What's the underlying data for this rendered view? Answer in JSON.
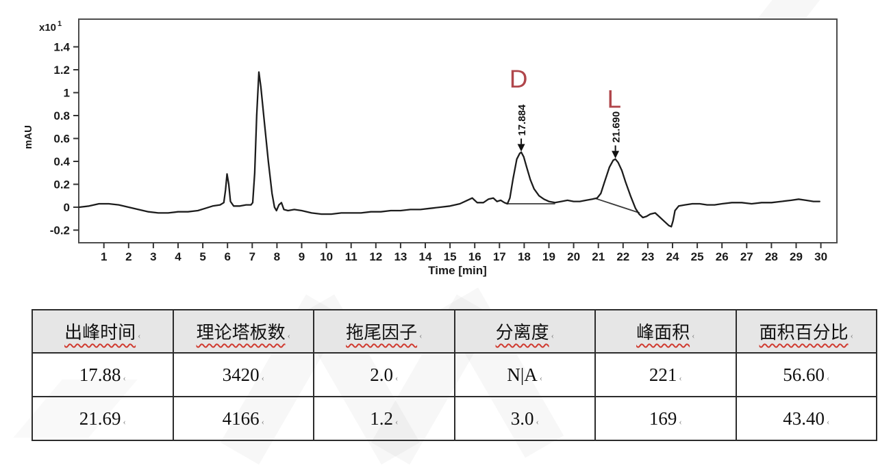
{
  "chart_data": {
    "type": "line",
    "title": "",
    "xlabel": "Time [min]",
    "ylabel": "mAU",
    "y_scale": {
      "base": "x10",
      "exponent": "1"
    },
    "xlim": [
      0,
      30.6
    ],
    "ylim": [
      -0.31,
      1.64
    ],
    "x_ticks": [
      1,
      2,
      3,
      4,
      5,
      6,
      7,
      8,
      9,
      10,
      11,
      12,
      13,
      14,
      15,
      16,
      17,
      18,
      19,
      20,
      21,
      22,
      23,
      24,
      25,
      26,
      27,
      28,
      29,
      30
    ],
    "y_ticks": [
      -0.2,
      0,
      0.2,
      0.4,
      0.6,
      0.8,
      1,
      1.2,
      1.4
    ],
    "grid": false,
    "trace_color": "#1c1c1c",
    "trace": [
      [
        0,
        0.0
      ],
      [
        0.4,
        0.01
      ],
      [
        0.8,
        0.03
      ],
      [
        1.2,
        0.03
      ],
      [
        1.6,
        0.02
      ],
      [
        2.0,
        0.0
      ],
      [
        2.4,
        -0.02
      ],
      [
        2.8,
        -0.04
      ],
      [
        3.2,
        -0.05
      ],
      [
        3.6,
        -0.05
      ],
      [
        4.0,
        -0.04
      ],
      [
        4.4,
        -0.04
      ],
      [
        4.8,
        -0.03
      ],
      [
        5.1,
        -0.01
      ],
      [
        5.4,
        0.01
      ],
      [
        5.7,
        0.02
      ],
      [
        5.85,
        0.04
      ],
      [
        5.92,
        0.15
      ],
      [
        5.98,
        0.29
      ],
      [
        6.05,
        0.2
      ],
      [
        6.12,
        0.05
      ],
      [
        6.25,
        0.01
      ],
      [
        6.5,
        0.01
      ],
      [
        6.75,
        0.02
      ],
      [
        6.95,
        0.02
      ],
      [
        7.02,
        0.04
      ],
      [
        7.1,
        0.3
      ],
      [
        7.18,
        0.8
      ],
      [
        7.27,
        1.18
      ],
      [
        7.35,
        1.05
      ],
      [
        7.5,
        0.72
      ],
      [
        7.65,
        0.4
      ],
      [
        7.8,
        0.12
      ],
      [
        7.9,
        0.0
      ],
      [
        7.98,
        -0.03
      ],
      [
        8.08,
        0.02
      ],
      [
        8.18,
        0.04
      ],
      [
        8.28,
        -0.02
      ],
      [
        8.45,
        -0.03
      ],
      [
        8.7,
        -0.02
      ],
      [
        9.0,
        -0.03
      ],
      [
        9.4,
        -0.05
      ],
      [
        9.8,
        -0.06
      ],
      [
        10.2,
        -0.06
      ],
      [
        10.6,
        -0.05
      ],
      [
        11.0,
        -0.05
      ],
      [
        11.4,
        -0.05
      ],
      [
        11.8,
        -0.04
      ],
      [
        12.2,
        -0.04
      ],
      [
        12.6,
        -0.03
      ],
      [
        13.0,
        -0.03
      ],
      [
        13.4,
        -0.02
      ],
      [
        13.8,
        -0.02
      ],
      [
        14.2,
        -0.01
      ],
      [
        14.6,
        0.0
      ],
      [
        15.0,
        0.01
      ],
      [
        15.4,
        0.03
      ],
      [
        15.7,
        0.06
      ],
      [
        15.9,
        0.08
      ],
      [
        16.1,
        0.04
      ],
      [
        16.35,
        0.04
      ],
      [
        16.55,
        0.07
      ],
      [
        16.75,
        0.08
      ],
      [
        16.9,
        0.05
      ],
      [
        17.05,
        0.06
      ],
      [
        17.2,
        0.04
      ],
      [
        17.32,
        0.03
      ],
      [
        17.42,
        0.08
      ],
      [
        17.55,
        0.25
      ],
      [
        17.7,
        0.42
      ],
      [
        17.82,
        0.47
      ],
      [
        17.88,
        0.48
      ],
      [
        17.98,
        0.44
      ],
      [
        18.1,
        0.35
      ],
      [
        18.25,
        0.24
      ],
      [
        18.4,
        0.16
      ],
      [
        18.6,
        0.1
      ],
      [
        18.8,
        0.07
      ],
      [
        19.0,
        0.05
      ],
      [
        19.25,
        0.04
      ],
      [
        19.5,
        0.05
      ],
      [
        19.75,
        0.06
      ],
      [
        20.0,
        0.05
      ],
      [
        20.25,
        0.05
      ],
      [
        20.5,
        0.06
      ],
      [
        20.75,
        0.07
      ],
      [
        20.95,
        0.08
      ],
      [
        21.1,
        0.12
      ],
      [
        21.25,
        0.22
      ],
      [
        21.45,
        0.35
      ],
      [
        21.6,
        0.41
      ],
      [
        21.69,
        0.42
      ],
      [
        21.8,
        0.39
      ],
      [
        21.95,
        0.32
      ],
      [
        22.1,
        0.22
      ],
      [
        22.3,
        0.1
      ],
      [
        22.5,
        -0.01
      ],
      [
        22.65,
        -0.06
      ],
      [
        22.8,
        -0.09
      ],
      [
        22.95,
        -0.08
      ],
      [
        23.1,
        -0.06
      ],
      [
        23.3,
        -0.05
      ],
      [
        23.5,
        -0.09
      ],
      [
        23.7,
        -0.13
      ],
      [
        23.85,
        -0.16
      ],
      [
        23.95,
        -0.17
      ],
      [
        24.02,
        -0.12
      ],
      [
        24.1,
        -0.03
      ],
      [
        24.25,
        0.01
      ],
      [
        24.5,
        0.02
      ],
      [
        24.8,
        0.03
      ],
      [
        25.1,
        0.03
      ],
      [
        25.4,
        0.02
      ],
      [
        25.7,
        0.02
      ],
      [
        26.0,
        0.03
      ],
      [
        26.4,
        0.04
      ],
      [
        26.8,
        0.04
      ],
      [
        27.2,
        0.03
      ],
      [
        27.6,
        0.04
      ],
      [
        28.0,
        0.04
      ],
      [
        28.4,
        0.05
      ],
      [
        28.8,
        0.06
      ],
      [
        29.1,
        0.07
      ],
      [
        29.4,
        0.06
      ],
      [
        29.7,
        0.05
      ],
      [
        29.95,
        0.05
      ]
    ],
    "peaks": [
      {
        "letter": "D",
        "letter_color": "#b0464b",
        "letter_pos": [
          17.77,
          1.045
        ],
        "rt_label": "17.884",
        "rt": 17.88,
        "apex_value": 0.48
      },
      {
        "letter": "L",
        "letter_color": "#b0464b",
        "letter_pos": [
          21.64,
          0.87
        ],
        "rt_label": "21.690",
        "rt": 21.69,
        "apex_value": 0.42
      }
    ],
    "baselines": [
      [
        [
          17.32,
          0.03
        ],
        [
          19.25,
          0.03
        ]
      ],
      [
        [
          20.9,
          0.075
        ],
        [
          22.67,
          -0.05
        ]
      ]
    ]
  },
  "table": {
    "headers": [
      "出峰时间",
      "理论塔板数",
      "拖尾因子",
      "分离度",
      "峰面积",
      "面积百分比"
    ],
    "rows": [
      [
        "17.88",
        "3420",
        "2.0",
        "N|A",
        "221",
        "56.60"
      ],
      [
        "21.69",
        "4166",
        "1.2",
        "3.0",
        "169",
        "43.40"
      ]
    ],
    "cell_mark": "‹"
  },
  "colors": {
    "trace": "#1c1c1c",
    "plot_border": "#4b4b4b",
    "peak_label_red": "#b0464b",
    "wavy_underline_red": "#d03a2f",
    "header_bg": "#e6e6e6"
  }
}
